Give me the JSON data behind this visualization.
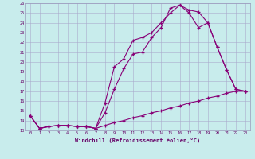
{
  "xlabel": "Windchill (Refroidissement éolien,°C)",
  "bg_color": "#c8ecec",
  "grid_color": "#aaaacc",
  "line_color": "#880077",
  "xmin": 0,
  "xmax": 23,
  "ymin": 13,
  "ymax": 26,
  "line1_x": [
    0,
    1,
    2,
    3,
    4,
    5,
    6,
    7,
    8,
    9,
    10,
    11,
    12,
    13,
    14,
    15,
    16,
    17,
    18,
    19,
    20,
    21,
    22,
    23
  ],
  "line1_y": [
    14.5,
    13.2,
    13.4,
    13.5,
    13.5,
    13.4,
    13.4,
    13.2,
    14.8,
    17.2,
    19.3,
    20.8,
    21.0,
    22.5,
    23.5,
    25.5,
    25.8,
    25.3,
    25.1,
    24.0,
    21.5,
    19.2,
    17.2,
    17.0
  ],
  "line2_x": [
    0,
    1,
    2,
    3,
    4,
    5,
    6,
    7,
    8,
    9,
    10,
    11,
    12,
    13,
    14,
    15,
    16,
    17,
    18,
    19,
    20,
    21,
    22,
    23
  ],
  "line2_y": [
    14.5,
    13.2,
    13.4,
    13.5,
    13.5,
    13.4,
    13.4,
    13.2,
    15.8,
    19.5,
    20.3,
    22.2,
    22.5,
    23.0,
    24.0,
    25.0,
    25.8,
    25.0,
    23.5,
    24.0,
    21.5,
    19.2,
    17.2,
    17.0
  ],
  "line3_x": [
    0,
    1,
    2,
    3,
    4,
    5,
    6,
    7,
    8,
    9,
    10,
    11,
    12,
    13,
    14,
    15,
    16,
    17,
    18,
    19,
    20,
    21,
    22,
    23
  ],
  "line3_y": [
    14.5,
    13.2,
    13.4,
    13.5,
    13.5,
    13.4,
    13.4,
    13.2,
    13.5,
    13.8,
    14.0,
    14.3,
    14.5,
    14.8,
    15.0,
    15.3,
    15.5,
    15.8,
    16.0,
    16.3,
    16.5,
    16.8,
    17.0,
    17.0
  ]
}
